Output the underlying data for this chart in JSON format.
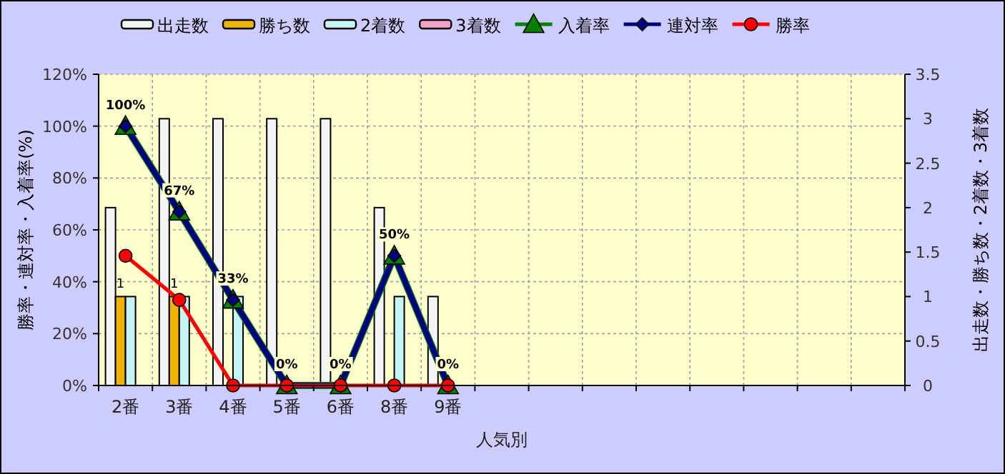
{
  "chart_data": {
    "type": "bar",
    "xlabel": "人気別",
    "ylabel": "勝率・連対率・入着率(%)",
    "y2label": "出走数・勝ち数・2着数・3着数",
    "categories": [
      "2番",
      "3番",
      "4番",
      "5番",
      "6番",
      "8番",
      "9番",
      null,
      null,
      null,
      null,
      null,
      null,
      null,
      null
    ],
    "series": [
      {
        "name": "出走数",
        "axis": "y2",
        "color": "#f4f4f4",
        "values": [
          2,
          3,
          3,
          3,
          3,
          2,
          1,
          null,
          null,
          null,
          null,
          null,
          null,
          null,
          null
        ]
      },
      {
        "name": "勝ち数",
        "axis": "y2",
        "color": "#f0b400",
        "values": [
          1,
          1,
          0,
          0,
          0,
          0,
          0,
          null,
          null,
          null,
          null,
          null,
          null,
          null,
          null
        ],
        "value_labels": [
          "1",
          "1",
          null,
          null,
          null,
          null,
          null,
          null,
          null,
          null,
          null,
          null,
          null,
          null,
          null
        ]
      },
      {
        "name": "2着数",
        "axis": "y2",
        "color": "#c4f4f4",
        "values": [
          1,
          1,
          1,
          0,
          0,
          1,
          0,
          null,
          null,
          null,
          null,
          null,
          null,
          null,
          null
        ]
      },
      {
        "name": "3着数",
        "axis": "y2",
        "color": "#f4a0c8",
        "values": [
          0,
          0,
          0,
          0,
          0,
          0,
          0,
          null,
          null,
          null,
          null,
          null,
          null,
          null,
          null
        ]
      },
      {
        "name": "入着率",
        "type": "line",
        "color": "#008000",
        "marker": "triangle",
        "values": [
          100,
          67,
          33,
          0,
          0,
          50,
          0,
          null,
          null,
          null,
          null,
          null,
          null,
          null,
          null
        ],
        "value_labels": [
          "100%",
          "67%",
          "33%",
          "0%",
          "0%",
          "50%",
          "0%",
          null,
          null,
          null,
          null,
          null,
          null,
          null,
          null
        ]
      },
      {
        "name": "連対率",
        "type": "line",
        "color": "#000080",
        "marker": "diamond",
        "values": [
          100,
          67,
          33,
          0,
          0,
          50,
          0,
          null,
          null,
          null,
          null,
          null,
          null,
          null,
          null
        ]
      },
      {
        "name": "勝率",
        "type": "line",
        "color": "#ff0000",
        "marker": "circle",
        "values": [
          50,
          33,
          0,
          0,
          0,
          0,
          0,
          null,
          null,
          null,
          null,
          null,
          null,
          null,
          null
        ]
      }
    ],
    "ylim": [
      0,
      120
    ],
    "yticks": [
      {
        "value": 0,
        "label": "0%"
      },
      {
        "value": 20,
        "label": "20%"
      },
      {
        "value": 40,
        "label": "40%"
      },
      {
        "value": 60,
        "label": "60%"
      },
      {
        "value": 80,
        "label": "80%"
      },
      {
        "value": 100,
        "label": "100%"
      },
      {
        "value": 120,
        "label": "120%"
      }
    ],
    "y2lim": [
      0,
      3.5
    ],
    "y2ticks": [
      0,
      0.5,
      1,
      1.5,
      2,
      2.5,
      3,
      3.5
    ],
    "grid": true,
    "legend": "top"
  }
}
